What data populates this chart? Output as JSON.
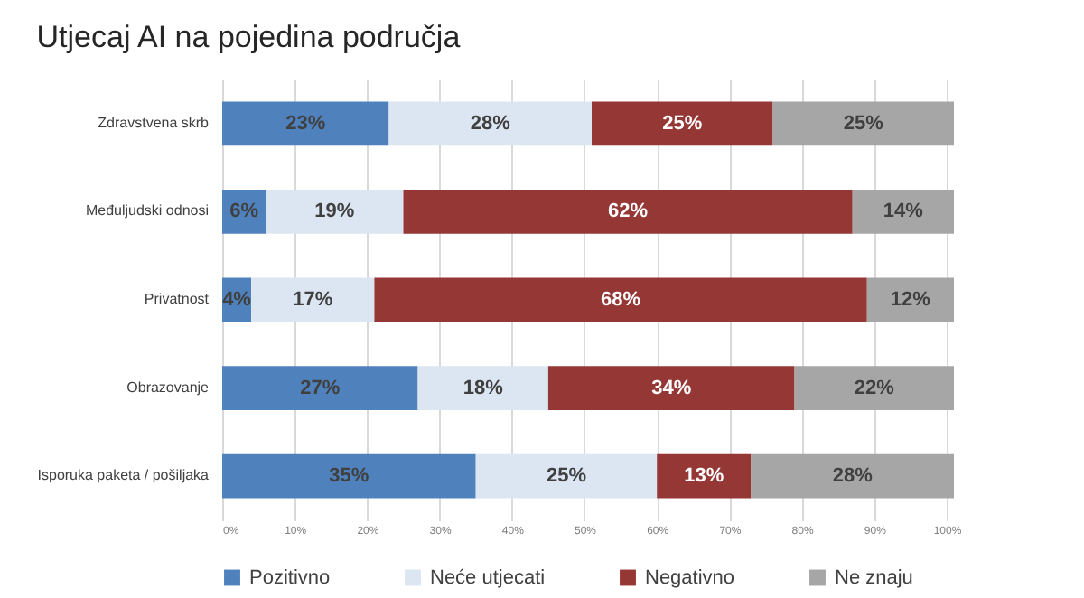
{
  "chart_data": {
    "type": "bar",
    "orientation": "horizontal",
    "stacked": true,
    "title": "Utjecaj AI na pojedina područja",
    "categories": [
      "Zdravstvena skrb",
      "Međuljudski odnosi",
      "Privatnost",
      "Obrazovanje",
      "Isporuka paketa / pošiljaka"
    ],
    "series": [
      {
        "name": "Pozitivno",
        "color": "#4f81bd",
        "values": [
          23,
          6,
          4,
          27,
          35
        ],
        "value_labels": [
          "23%",
          "6%",
          "4%",
          "27%",
          "35%"
        ]
      },
      {
        "name": "Neće utjecati",
        "color": "#dce6f2",
        "values": [
          28,
          19,
          17,
          18,
          25
        ],
        "value_labels": [
          "28%",
          "19%",
          "17%",
          "18%",
          "25%"
        ]
      },
      {
        "name": "Negativno",
        "color": "#953735",
        "values": [
          25,
          62,
          68,
          34,
          13
        ],
        "value_labels": [
          "25%",
          "62%",
          "68%",
          "34%",
          "13%"
        ]
      },
      {
        "name": "Ne znaju",
        "color": "#a6a6a6",
        "values": [
          25,
          14,
          12,
          22,
          28
        ],
        "value_labels": [
          "25%",
          "14%",
          "12%",
          "22%",
          "28%"
        ]
      }
    ],
    "xlim": [
      0,
      101
    ],
    "xticks": [
      {
        "value": 0,
        "label": "0%"
      },
      {
        "value": 10,
        "label": "10%"
      },
      {
        "value": 20,
        "label": "20%"
      },
      {
        "value": 30,
        "label": "30%"
      },
      {
        "value": 40,
        "label": "40%"
      },
      {
        "value": 50,
        "label": "50%"
      },
      {
        "value": 60,
        "label": "60%"
      },
      {
        "value": 70,
        "label": "70%"
      },
      {
        "value": 80,
        "label": "80%"
      },
      {
        "value": 90,
        "label": "90%"
      },
      {
        "value": 100,
        "label": "100%"
      }
    ],
    "grid": "x",
    "legend": "bottom"
  }
}
